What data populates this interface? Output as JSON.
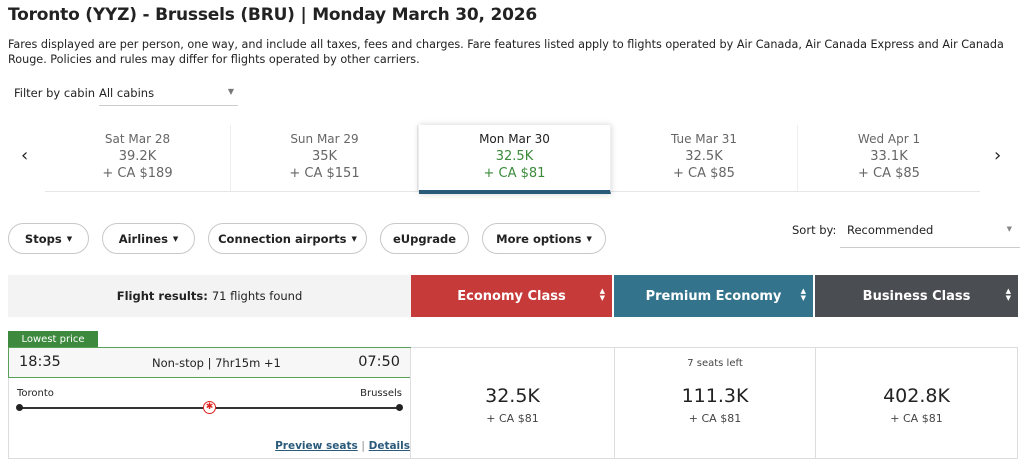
{
  "header": {
    "title": "Toronto (YYZ) - Brussels (BRU)  |  Monday March 30, 2026",
    "description": "Fares displayed are per person, one way, and include all taxes, fees and charges. Fare features listed apply to flights operated by Air Canada, Air Canada Express and Air Canada Rouge. Policies and rules may differ for flights operated by other carriers."
  },
  "cabin_filter": {
    "label": "Filter by cabin",
    "value": "All cabins"
  },
  "date_strip": {
    "days": [
      {
        "date": "Sat Mar 28",
        "points": "39.2K",
        "cash": "+ CA $189"
      },
      {
        "date": "Sun Mar 29",
        "points": "35K",
        "cash": "+ CA $151"
      },
      {
        "date": "Mon Mar 30",
        "points": "32.5K",
        "cash": "+ CA $81",
        "selected": true
      },
      {
        "date": "Tue Mar 31",
        "points": "32.5K",
        "cash": "+ CA $85"
      },
      {
        "date": "Wed Apr 1",
        "points": "33.1K",
        "cash": "+ CA $85"
      }
    ],
    "selected_color": "#3b8a3a"
  },
  "filters": [
    "Stops",
    "Airlines",
    "Connection airports",
    "eUpgrade",
    "More options"
  ],
  "sort": {
    "label": "Sort by:",
    "value": "Recommended"
  },
  "results_header": {
    "label": "Flight results:",
    "count": "71 flights found",
    "cabins": [
      {
        "name": "Economy Class",
        "color": "#c63b3a"
      },
      {
        "name": "Premium Economy",
        "color": "#33748c"
      },
      {
        "name": "Business Class",
        "color": "#4a4d52"
      }
    ]
  },
  "flight": {
    "tag": "Lowest price",
    "depart": "18:35",
    "arrive": "07:50",
    "summary": "Non-stop | 7hr15m +1",
    "origin": "Toronto",
    "destination": "Brussels",
    "preview_seats": "Preview seats",
    "separator": "|",
    "details": "Details",
    "fares": [
      {
        "points": "32.5K",
        "cash": "+ CA $81",
        "seats": ""
      },
      {
        "points": "111.3K",
        "cash": "+ CA $81",
        "seats": "7 seats left"
      },
      {
        "points": "402.8K",
        "cash": "+ CA $81",
        "seats": ""
      }
    ]
  }
}
